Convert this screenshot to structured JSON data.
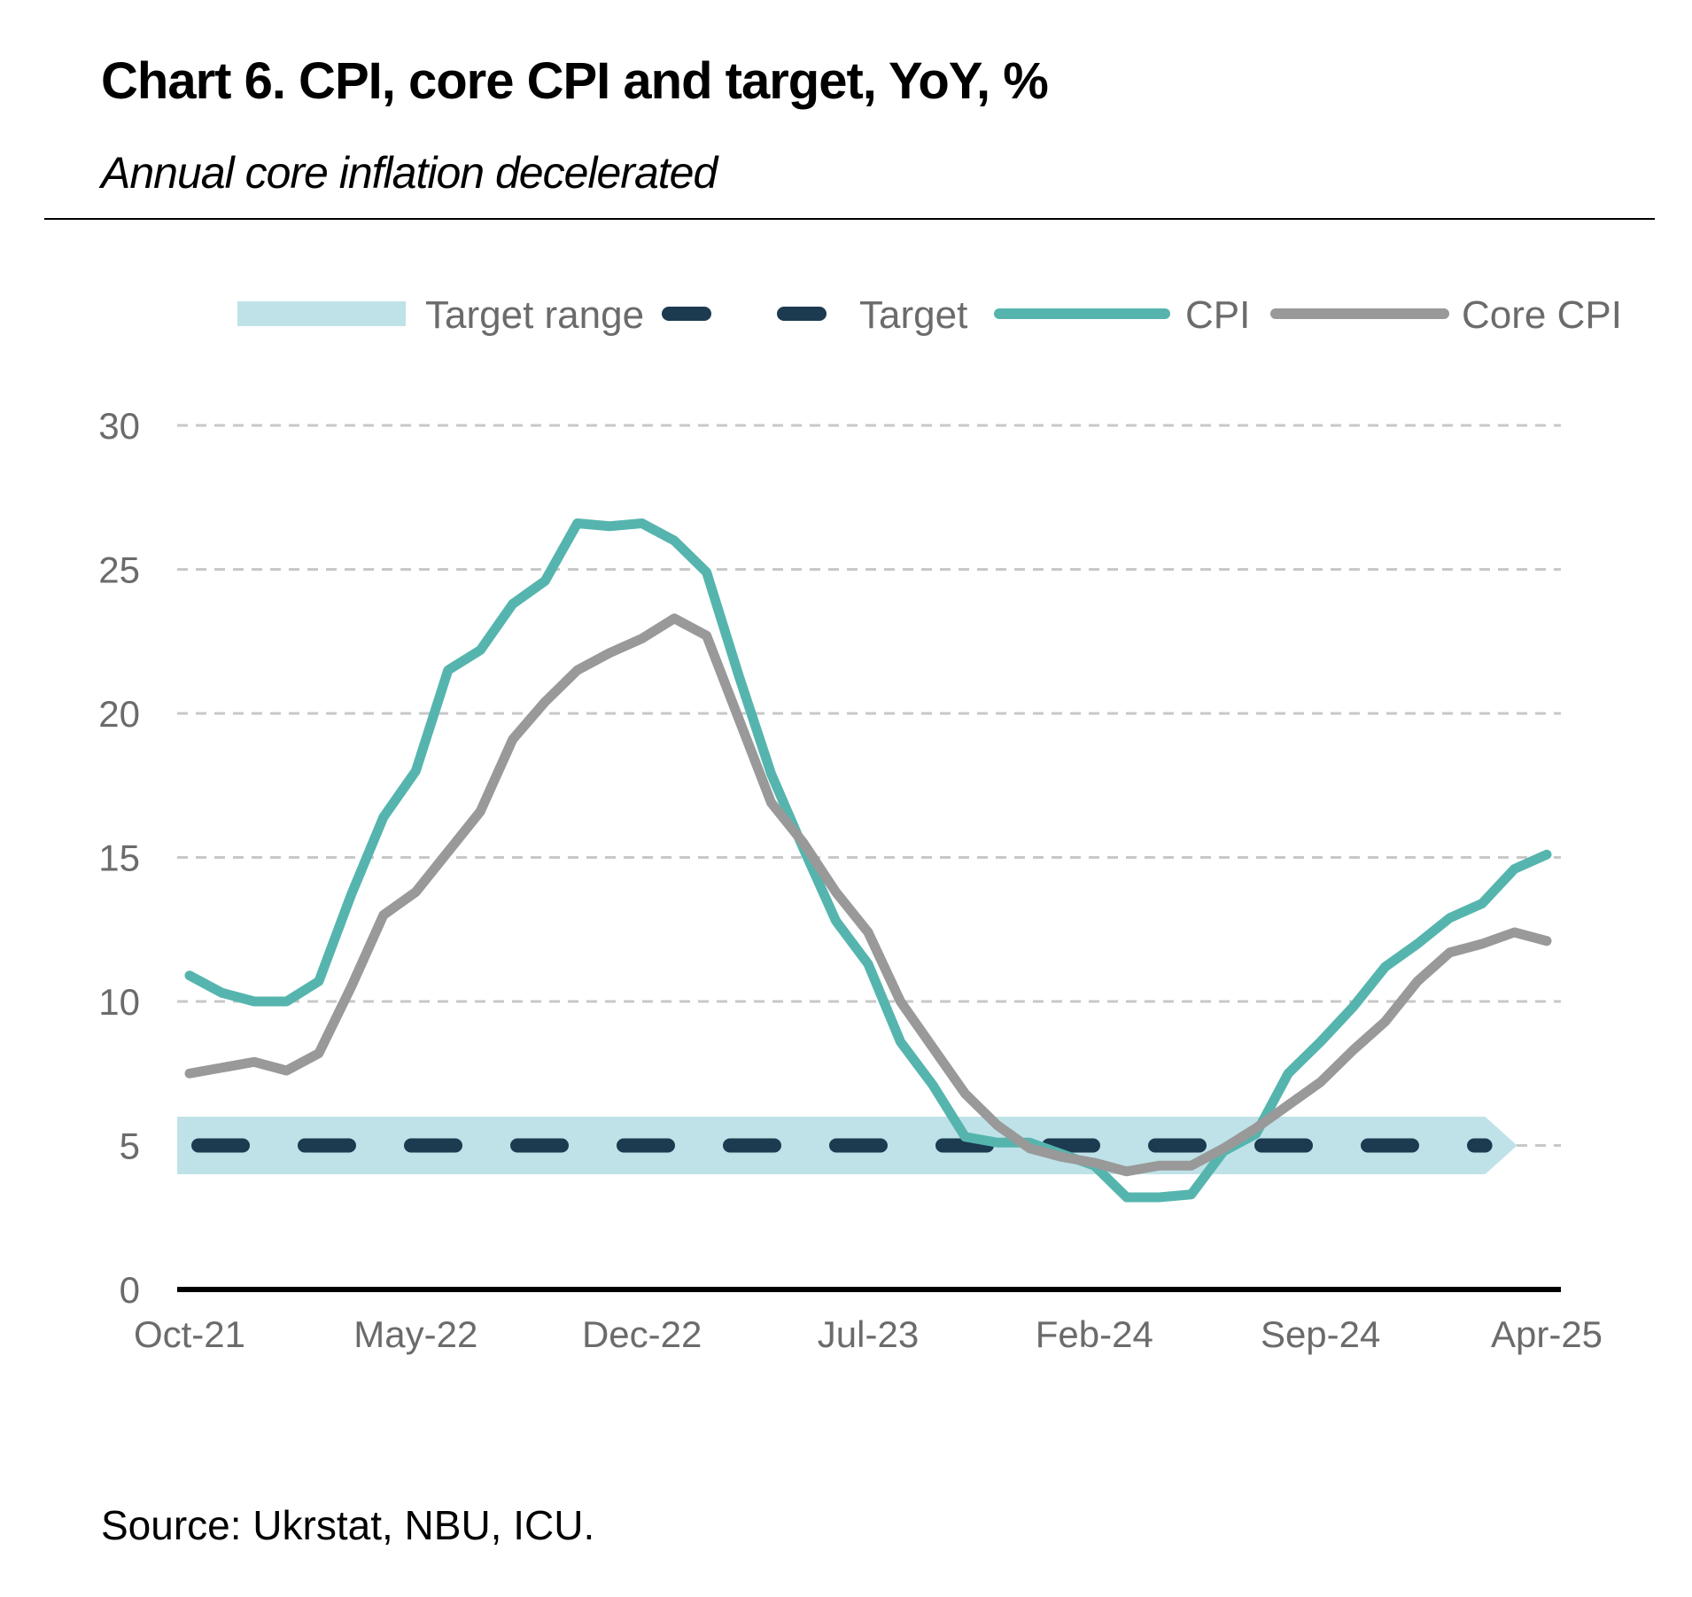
{
  "header": {
    "title": "Chart 6. CPI, core CPI and target, YoY, %",
    "subtitle": "Annual core inflation decelerated"
  },
  "footer": {
    "source": "Source: Ukrstat, NBU, ICU."
  },
  "colors": {
    "target_range": "#bfe2e8",
    "target": "#1c3b50",
    "cpi": "#55b5ae",
    "core_cpi": "#999999",
    "grid": "#c8c8c8",
    "axis": "#000000"
  },
  "chart_data": {
    "type": "line",
    "title": "Chart 6. CPI, core CPI and target, YoY, %",
    "subtitle": "Annual core inflation decelerated",
    "xlabel": "",
    "ylabel": "",
    "ylim": [
      0,
      30
    ],
    "yticks": [
      0,
      5,
      10,
      15,
      20,
      25,
      30
    ],
    "grid": "horizontal dashed",
    "legend_position": "top",
    "x_tick_labels": [
      "Oct-21",
      "May-22",
      "Dec-22",
      "Jul-23",
      "Feb-24",
      "Sep-24",
      "Apr-25"
    ],
    "x": [
      "Oct-21",
      "Nov-21",
      "Dec-21",
      "Jan-22",
      "Feb-22",
      "Mar-22",
      "Apr-22",
      "May-22",
      "Jun-22",
      "Jul-22",
      "Aug-22",
      "Sep-22",
      "Oct-22",
      "Nov-22",
      "Dec-22",
      "Jan-23",
      "Feb-23",
      "Mar-23",
      "Apr-23",
      "May-23",
      "Jun-23",
      "Jul-23",
      "Aug-23",
      "Sep-23",
      "Oct-23",
      "Nov-23",
      "Dec-23",
      "Jan-24",
      "Feb-24",
      "Mar-24",
      "Apr-24",
      "May-24",
      "Jun-24",
      "Jul-24",
      "Aug-24",
      "Sep-24",
      "Oct-24",
      "Nov-24",
      "Dec-24",
      "Jan-25",
      "Feb-25",
      "Mar-25",
      "Apr-25"
    ],
    "legend": [
      "Target range",
      "Target",
      "CPI",
      "Core CPI"
    ],
    "series": [
      {
        "name": "CPI",
        "values": [
          10.9,
          10.3,
          10.0,
          10.0,
          10.7,
          13.7,
          16.4,
          18.0,
          21.5,
          22.2,
          23.8,
          24.6,
          26.6,
          26.5,
          26.6,
          26.0,
          24.9,
          21.3,
          17.9,
          15.3,
          12.8,
          11.3,
          8.6,
          7.1,
          5.3,
          5.1,
          5.1,
          4.7,
          4.3,
          3.2,
          3.2,
          3.3,
          4.8,
          5.4,
          7.5,
          8.6,
          9.8,
          11.2,
          12.0,
          12.9,
          13.4,
          14.6,
          15.1
        ]
      },
      {
        "name": "Core CPI",
        "values": [
          7.5,
          7.7,
          7.9,
          7.6,
          8.2,
          10.5,
          13.0,
          13.8,
          15.2,
          16.6,
          19.1,
          20.4,
          21.5,
          22.1,
          22.6,
          23.3,
          22.7,
          19.8,
          16.9,
          15.5,
          13.8,
          12.4,
          10.0,
          8.4,
          6.8,
          5.7,
          4.9,
          4.6,
          4.4,
          4.1,
          4.3,
          4.3,
          4.9,
          5.6,
          6.4,
          7.2,
          8.3,
          9.3,
          10.7,
          11.7,
          12.0,
          12.4,
          12.1
        ]
      },
      {
        "name": "Target",
        "value": 5,
        "x_range": [
          "Oct-21",
          "Jan-25"
        ]
      },
      {
        "name": "Target range",
        "range": [
          4,
          6
        ],
        "x_range": [
          "Oct-21",
          "Jan-25"
        ]
      }
    ]
  }
}
